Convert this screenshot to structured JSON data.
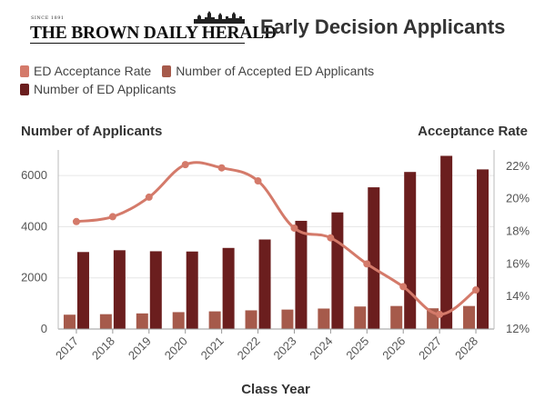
{
  "header": {
    "logo_since": "SINCE 1891",
    "logo_name": "THE BROWN DAILY HERALD",
    "title": "Early Decision Applicants"
  },
  "colors": {
    "rate_line": "#d47a6a",
    "accepted_bar": "#a65a4b",
    "applicants_bar": "#6b1e1e",
    "grid": "#e6e6e6"
  },
  "chart_data": {
    "type": "bar",
    "title": "Early Decision Applicants",
    "categories": [
      "2017",
      "2018",
      "2019",
      "2020",
      "2021",
      "2022",
      "2023",
      "2024",
      "2025",
      "2026",
      "2027",
      "2028"
    ],
    "xlabel": "Class Year",
    "ylabel": "Number of Applicants",
    "y2label": "Acceptance Rate",
    "ylim": [
      0,
      7000
    ],
    "y2lim": [
      12,
      23
    ],
    "yticks": [
      0,
      2000,
      4000,
      6000
    ],
    "y2ticks": [
      12,
      14,
      16,
      18,
      20,
      22
    ],
    "y2tick_labels": [
      "12%",
      "14%",
      "16%",
      "18%",
      "20%",
      "22%"
    ],
    "legend": [
      "ED Acceptance Rate",
      "Number of Accepted ED Applicants",
      "Number of ED Applicants"
    ],
    "series": [
      {
        "name": "ED Acceptance Rate",
        "type": "line",
        "axis": "right",
        "values": [
          18.6,
          18.9,
          20.1,
          22.1,
          21.9,
          21.1,
          18.2,
          17.6,
          16.0,
          14.6,
          12.9,
          14.4
        ]
      },
      {
        "name": "Number of Accepted ED Applicants",
        "type": "bar",
        "axis": "left",
        "values": [
          560,
          580,
          610,
          660,
          690,
          730,
          760,
          800,
          880,
          900,
          810,
          900
        ]
      },
      {
        "name": "Number of ED Applicants",
        "type": "bar",
        "axis": "left",
        "values": [
          3010,
          3080,
          3040,
          3030,
          3170,
          3500,
          4230,
          4560,
          5540,
          6140,
          6770,
          6240
        ]
      }
    ]
  }
}
